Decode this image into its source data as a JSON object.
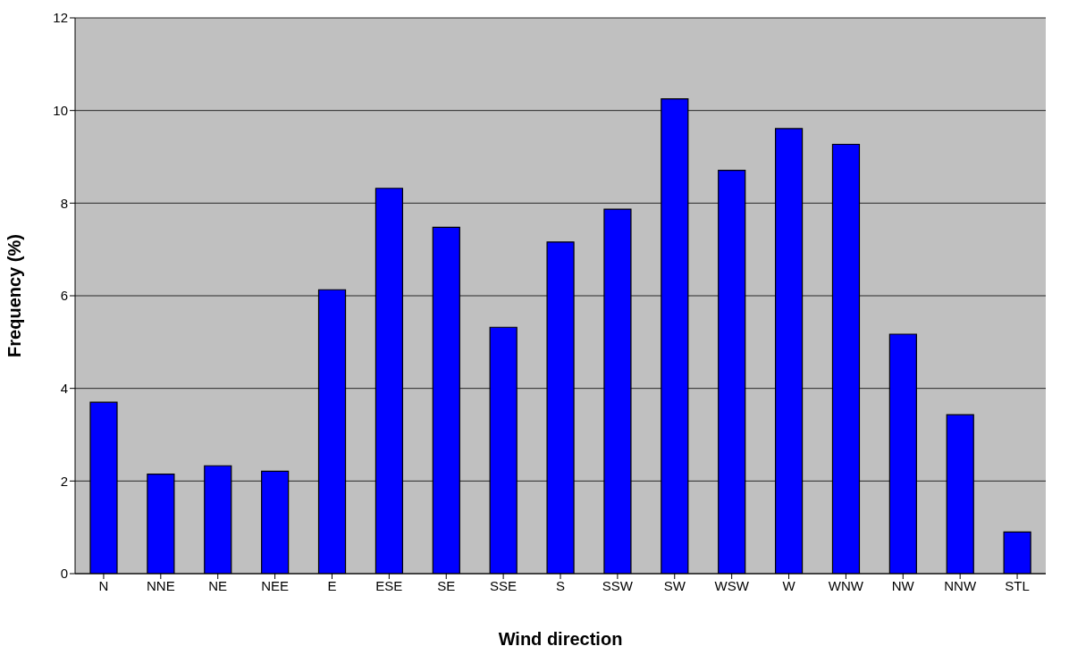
{
  "chart_data": {
    "type": "bar",
    "xlabel": "Wind direction",
    "ylabel": "Frequency (%)",
    "categories": [
      "N",
      "NNE",
      "NE",
      "NEE",
      "E",
      "ESE",
      "SE",
      "SSE",
      "S",
      "SSW",
      "SW",
      "WSW",
      "W",
      "WNW",
      "NW",
      "NNW",
      "STL"
    ],
    "values": [
      3.7,
      2.15,
      2.33,
      2.21,
      6.13,
      8.32,
      7.48,
      5.32,
      7.16,
      7.87,
      10.25,
      8.71,
      9.61,
      9.27,
      5.17,
      3.43,
      0.9
    ],
    "color": "#0000ff",
    "ylim": [
      0,
      12
    ],
    "yticks": [
      0,
      2,
      4,
      6,
      8,
      10,
      12
    ],
    "grid": "y"
  }
}
